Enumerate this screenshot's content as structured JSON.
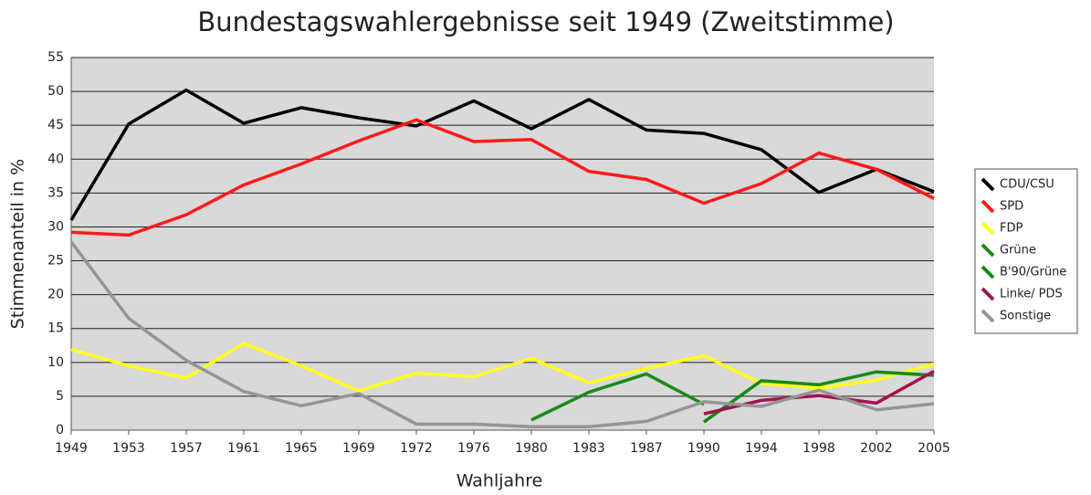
{
  "chart_data": {
    "type": "line",
    "title": "Bundestagswahlergebnisse seit 1949 (Zweitstimme)",
    "x_label": "Wahljahre",
    "y_label": "Stimmenanteil in %",
    "categories": [
      "1949",
      "1953",
      "1957",
      "1961",
      "1965",
      "1969",
      "1972",
      "1976",
      "1980",
      "1983",
      "1987",
      "1990",
      "1994",
      "1998",
      "2002",
      "2005"
    ],
    "ylim": [
      0,
      55
    ],
    "yticks": [
      0,
      5,
      10,
      15,
      20,
      25,
      30,
      35,
      40,
      45,
      50,
      55
    ],
    "grid": true,
    "legend": "right",
    "series": [
      {
        "name": "CDU/CSU",
        "color": "#000000",
        "values": [
          31.0,
          45.2,
          50.2,
          45.3,
          47.6,
          46.1,
          44.9,
          48.6,
          44.5,
          48.8,
          44.3,
          43.8,
          41.4,
          35.1,
          38.5,
          35.2
        ]
      },
      {
        "name": "SPD",
        "color": "#ff1a1a",
        "values": [
          29.2,
          28.8,
          31.8,
          36.2,
          39.3,
          42.7,
          45.8,
          42.6,
          42.9,
          38.2,
          37.0,
          33.5,
          36.4,
          40.9,
          38.5,
          34.2
        ]
      },
      {
        "name": "FDP",
        "color": "#ffff1a",
        "values": [
          11.9,
          9.5,
          7.7,
          12.8,
          9.5,
          5.8,
          8.4,
          7.9,
          10.6,
          7.0,
          9.1,
          11.0,
          6.9,
          6.2,
          7.4,
          9.8
        ]
      },
      {
        "name": "Grüne",
        "color": "#1a8a1a",
        "values": [
          null,
          null,
          null,
          null,
          null,
          null,
          null,
          null,
          1.5,
          5.6,
          8.3,
          3.8,
          null,
          null,
          null,
          null
        ]
      },
      {
        "name": "B'90/Grüne",
        "color": "#138a13",
        "values": [
          null,
          null,
          null,
          null,
          null,
          null,
          null,
          null,
          null,
          null,
          null,
          1.2,
          7.3,
          6.7,
          8.6,
          8.1
        ]
      },
      {
        "name": "Linke/ PDS",
        "color": "#a3124e",
        "values": [
          null,
          null,
          null,
          null,
          null,
          null,
          null,
          null,
          null,
          null,
          null,
          2.4,
          4.4,
          5.1,
          4.0,
          8.7
        ]
      },
      {
        "name": "Sonstige",
        "color": "#959595",
        "values": [
          27.8,
          16.5,
          10.3,
          5.7,
          3.6,
          5.4,
          0.9,
          0.9,
          0.5,
          0.5,
          1.3,
          4.2,
          3.5,
          5.9,
          3.0,
          3.9
        ]
      }
    ]
  }
}
